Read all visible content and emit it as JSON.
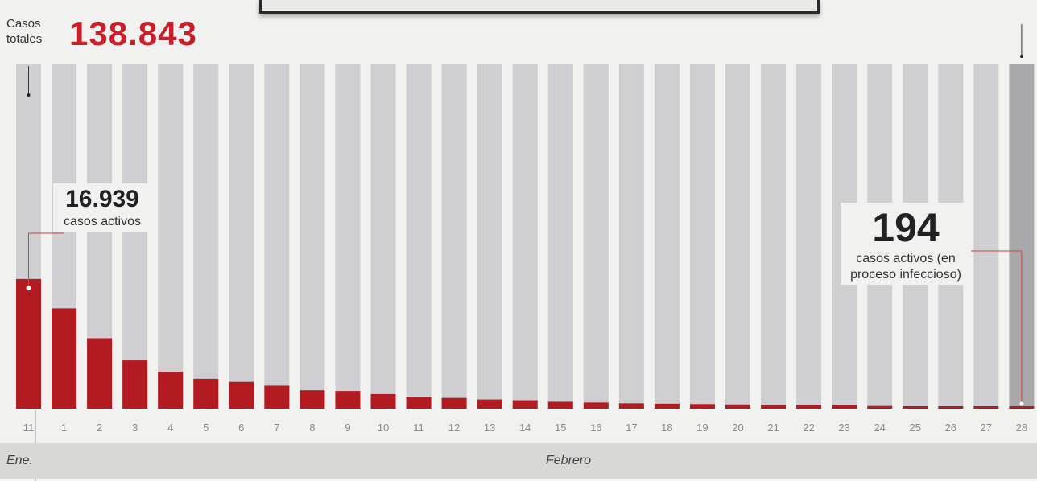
{
  "header": {
    "total_label": "Casos totales",
    "total_value": "138.843"
  },
  "annotations": {
    "left_value": "16.939",
    "left_text": "casos activos",
    "right_value": "194",
    "right_text": "casos activos (en proceso infeccioso)"
  },
  "months": {
    "january": "Ene.",
    "february": "Febrero"
  },
  "colors": {
    "active": "#b31b22",
    "total_bar": "#cfcfd1",
    "last_total_bar": "#a9a9ab",
    "accent": "#c8202b"
  },
  "chart_data": {
    "type": "bar",
    "stacked": "overlay",
    "categories": [
      "11",
      "1",
      "2",
      "3",
      "4",
      "5",
      "6",
      "7",
      "8",
      "9",
      "10",
      "11",
      "12",
      "13",
      "14",
      "15",
      "16",
      "17",
      "18",
      "19",
      "20",
      "21",
      "22",
      "23",
      "24",
      "25",
      "26",
      "27",
      "28"
    ],
    "series": [
      {
        "name": "Casos totales",
        "values": [
          138843,
          138843,
          138843,
          138843,
          138843,
          138843,
          138843,
          138843,
          138843,
          138843,
          138843,
          138843,
          138843,
          138843,
          138843,
          138843,
          138843,
          138843,
          138843,
          138843,
          138843,
          138843,
          138843,
          138843,
          138843,
          138843,
          138843,
          138843,
          138843
        ]
      },
      {
        "name": "casos activos",
        "values": [
          16939,
          13100,
          9200,
          6300,
          4800,
          3900,
          3500,
          3000,
          2400,
          2300,
          1900,
          1500,
          1400,
          1200,
          1100,
          900,
          800,
          700,
          650,
          600,
          550,
          500,
          480,
          450,
          350,
          300,
          250,
          220,
          194
        ]
      }
    ],
    "ylim": [
      0,
      45000
    ],
    "xlabel": "",
    "ylabel": "",
    "grid": false,
    "legend": "none"
  }
}
